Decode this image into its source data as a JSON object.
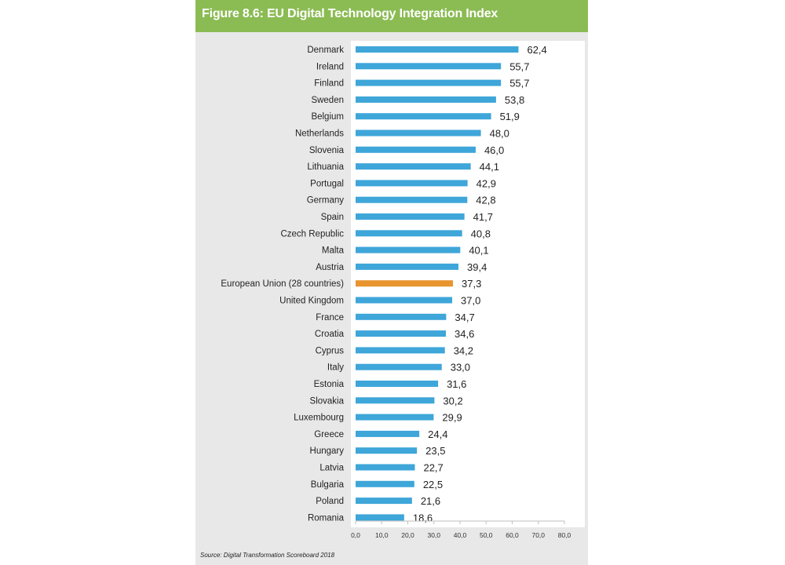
{
  "figure": {
    "title": "Figure 8.6: EU Digital Technology Integration Index",
    "source": "Source: Digital Transformation Scoreboard 2018"
  },
  "colors": {
    "header_bg": "#8bbb53",
    "panel_bg": "#e8e8e8",
    "plot_bg": "#ffffff",
    "bar": "#3ea6d9",
    "highlight_bar": "#e8952f"
  },
  "chart_data": {
    "type": "bar",
    "orientation": "horizontal",
    "title": "Figure 8.6: EU Digital Technology Integration Index",
    "xlabel": "",
    "ylabel": "",
    "xlim": [
      0,
      80
    ],
    "x_ticks": [
      "0,0",
      "10,0",
      "20,0",
      "30,0",
      "40,0",
      "50,0",
      "60,0",
      "70,0",
      "80,0"
    ],
    "grid": false,
    "highlight": "European Union (28 countries)",
    "categories": [
      "Denmark",
      "Ireland",
      "Finland",
      "Sweden",
      "Belgium",
      "Netherlands",
      "Slovenia",
      "Lithuania",
      "Portugal",
      "Germany",
      "Spain",
      "Czech Republic",
      "Malta",
      "Austria",
      "European Union (28 countries)",
      "United Kingdom",
      "France",
      "Croatia",
      "Cyprus",
      "Italy",
      "Estonia",
      "Slovakia",
      "Luxembourg",
      "Greece",
      "Hungary",
      "Latvia",
      "Bulgaria",
      "Poland",
      "Romania"
    ],
    "values": [
      62.4,
      55.7,
      55.7,
      53.8,
      51.9,
      48.0,
      46.0,
      44.1,
      42.9,
      42.8,
      41.7,
      40.8,
      40.1,
      39.4,
      37.3,
      37.0,
      34.7,
      34.6,
      34.2,
      33.0,
      31.6,
      30.2,
      29.9,
      24.4,
      23.5,
      22.7,
      22.5,
      21.6,
      18.6
    ],
    "value_labels": [
      "62,4",
      "55,7",
      "55,7",
      "53,8",
      "51,9",
      "48,0",
      "46,0",
      "44,1",
      "42,9",
      "42,8",
      "41,7",
      "40,8",
      "40,1",
      "39,4",
      "37,3",
      "37,0",
      "34,7",
      "34,6",
      "34,2",
      "33,0",
      "31,6",
      "30,2",
      "29,9",
      "24,4",
      "23,5",
      "22,7",
      "22,5",
      "21,6",
      "18,6"
    ]
  }
}
